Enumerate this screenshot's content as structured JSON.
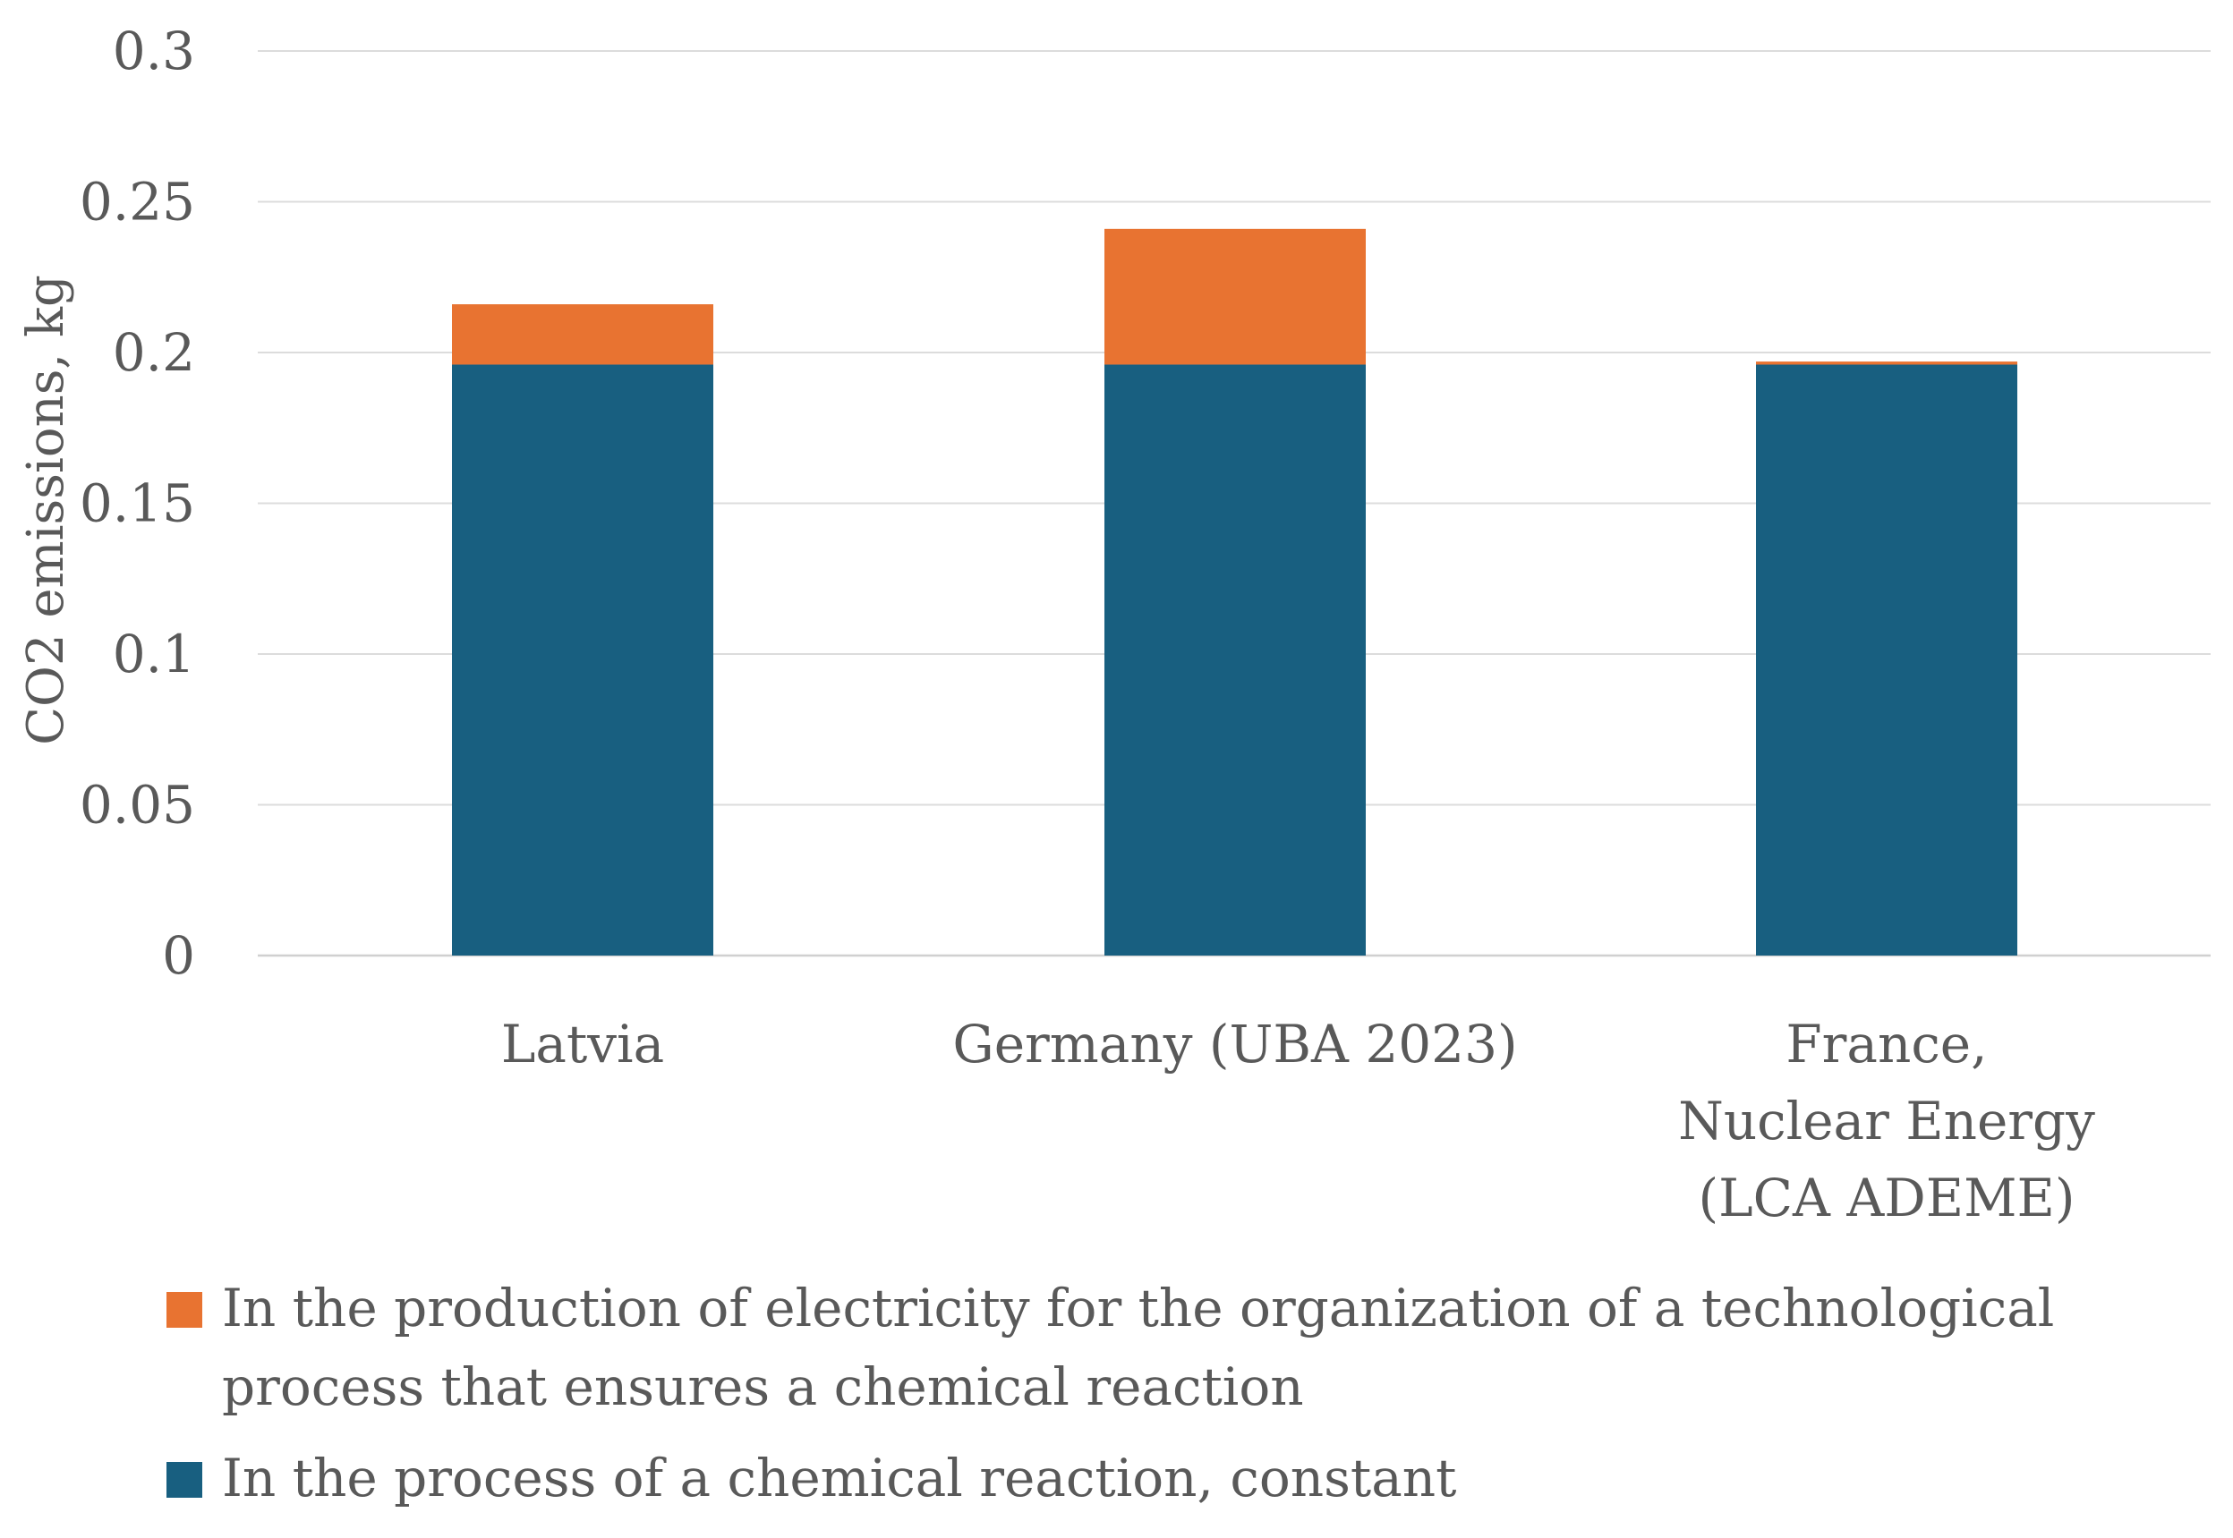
{
  "chart_data": {
    "type": "bar",
    "stacked": true,
    "title": "",
    "xlabel": "",
    "ylabel": "CO2 emissions, kg",
    "ylim": [
      0,
      0.3
    ],
    "yticks": [
      "0",
      "0.05",
      "0.1",
      "0.15",
      "0.2",
      "0.25",
      "0.3"
    ],
    "grid": true,
    "legend_position": "bottom",
    "categories": [
      [
        "Latvia"
      ],
      [
        "Germany (UBA 2023)"
      ],
      [
        "France,",
        "Nuclear Energy",
        "(LCA ADEME)"
      ]
    ],
    "series": [
      {
        "name": "In the process of a chemical reaction, constant",
        "color": "#185F80",
        "values": [
          0.196,
          0.196,
          0.196
        ]
      },
      {
        "name": "In the production of electricity for the organization of a technological process that ensures a chemical reaction",
        "color": "#E87331",
        "values": [
          0.02,
          0.045,
          0.001
        ]
      }
    ],
    "legend": [
      {
        "line1": "In the production of electricity for the organization of a technological",
        "line2": "process that ensures a chemical reaction",
        "color": "#E87331"
      },
      {
        "line1": "In the process of a chemical reaction, constant",
        "color": "#185F80"
      }
    ]
  }
}
